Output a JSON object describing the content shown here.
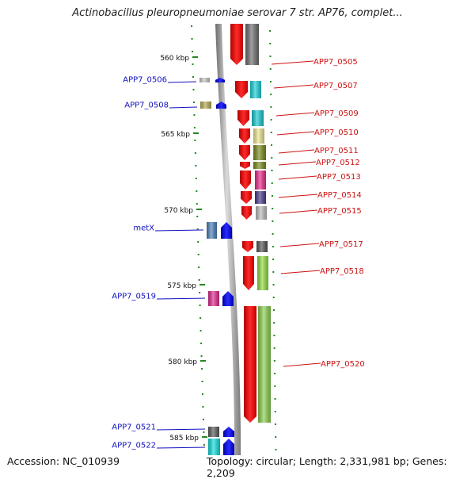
{
  "title": "Actinobacillus pleuropneumoniae serovar 7 str. AP76, complet...",
  "accession": "Accession: NC_010939",
  "stats": "Topology: circular; Length: 2,331,981 bp; Genes: 2,209",
  "colors": {
    "forward_label": "#1010c0",
    "reverse_label": "#cc1111",
    "tick": "#228822",
    "backbone": "#9a9a9a"
  },
  "ticks": [
    {
      "label": "560 kbp"
    },
    {
      "label": "565 kbp"
    },
    {
      "label": "570 kbp"
    },
    {
      "label": "575 kbp"
    },
    {
      "label": "580 kbp"
    },
    {
      "label": "585 kbp"
    }
  ],
  "forward_genes": [
    {
      "label": "APP7_0506",
      "color": "#c8c8c8"
    },
    {
      "label": "APP7_0508",
      "color": "#b5ab52"
    },
    {
      "label": "metX",
      "color": "#4a7fb8"
    },
    {
      "label": "APP7_0519",
      "color": "#e02a8e"
    },
    {
      "label": "APP7_0521",
      "color": "#5a5a5a"
    },
    {
      "label": "APP7_0522",
      "color": "#11dcdc"
    }
  ],
  "reverse_genes": [
    {
      "label": "APP7_0505",
      "color": "#6e6e6e"
    },
    {
      "label": "APP7_0507",
      "color": "#18d0d8"
    },
    {
      "label": "APP7_0509",
      "color": "#18c8d0"
    },
    {
      "label": "APP7_0510",
      "color": "#ece590"
    },
    {
      "label": "APP7_0511",
      "color": "#7a8a1c"
    },
    {
      "label": "APP7_0512",
      "color": "#7a8a1c"
    },
    {
      "label": "APP7_0513",
      "color": "#e8288a"
    },
    {
      "label": "APP7_0514",
      "color": "#4a3a8a"
    },
    {
      "label": "APP7_0515",
      "color": "#bcbcbc"
    },
    {
      "label": "APP7_0517",
      "color": "#555555"
    },
    {
      "label": "APP7_0518",
      "color": "#90dc40"
    },
    {
      "label": "APP7_0520",
      "color": "#8cd050"
    }
  ]
}
